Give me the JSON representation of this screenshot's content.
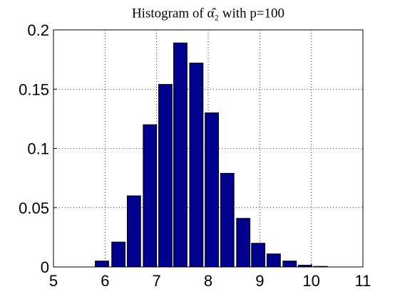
{
  "chart_data": {
    "type": "bar",
    "title": "Histogram of α̂₂ with p=100",
    "x": [
      5.94,
      6.26,
      6.56,
      6.87,
      7.17,
      7.46,
      7.77,
      8.07,
      8.37,
      8.68,
      8.97,
      9.27,
      9.58,
      9.88,
      10.18
    ],
    "values": [
      0.005,
      0.021,
      0.06,
      0.12,
      0.154,
      0.189,
      0.172,
      0.13,
      0.079,
      0.041,
      0.02,
      0.011,
      0.005,
      0.0015,
      0.0005
    ],
    "color": "#00008f",
    "xlim": [
      5,
      11
    ],
    "xticks": [
      5,
      6,
      7,
      8,
      9,
      10,
      11
    ],
    "ylim": [
      0,
      0.2
    ],
    "yticks": [
      0,
      0.05,
      0.1,
      0.15,
      0.2
    ],
    "grid": true
  }
}
